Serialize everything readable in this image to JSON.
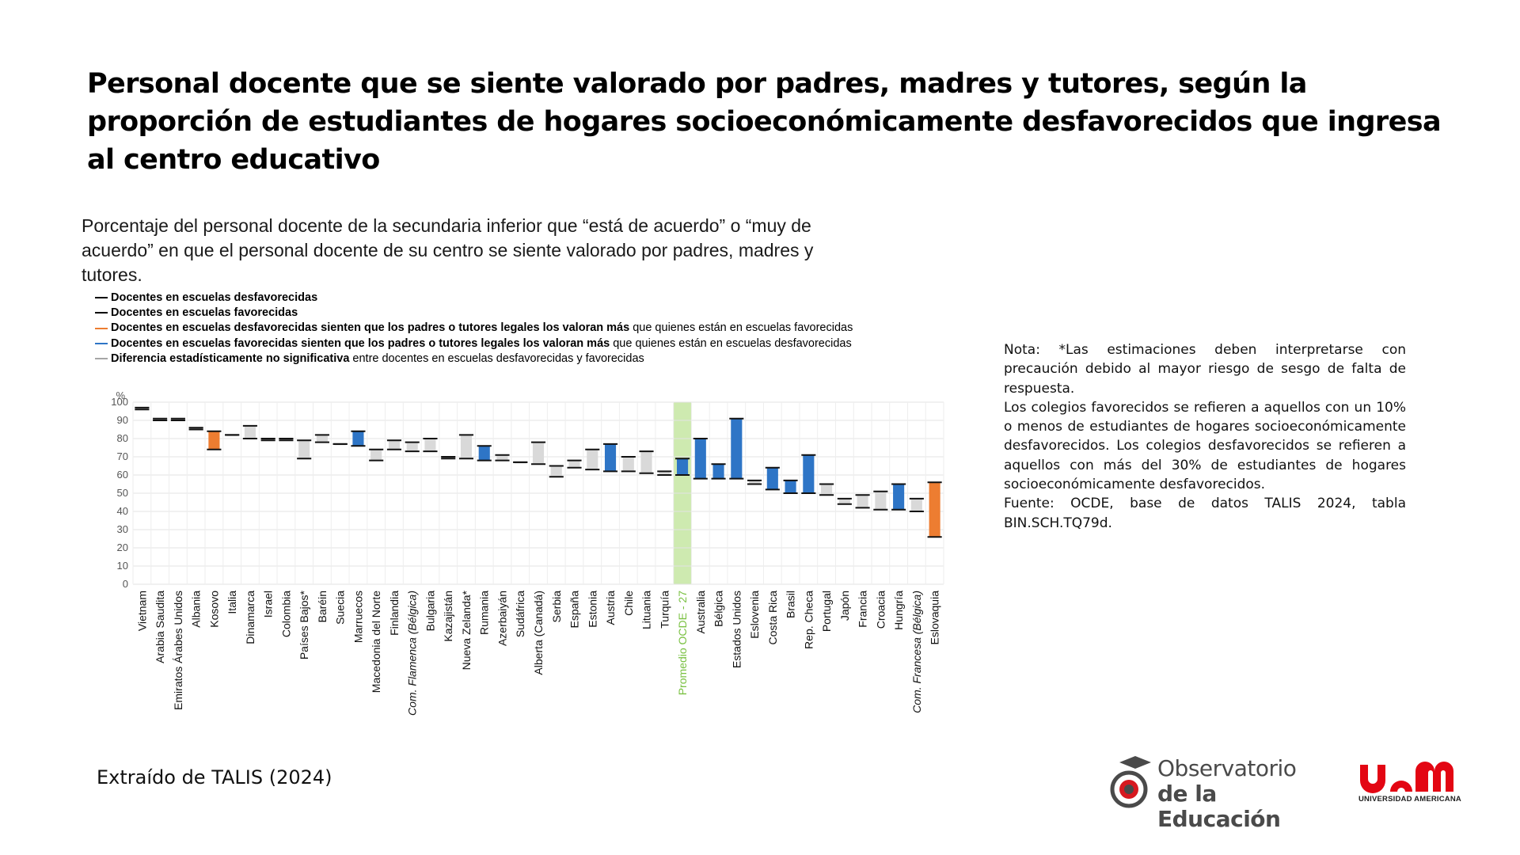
{
  "title": "Personal docente que se siente valorado por padres, madres y tutores, según la proporción de estudiantes de hogares socioeconómicamente desfavorecidos que ingresa al centro educativo",
  "subtitle": "Porcentaje del personal docente de la secundaria inferior que “está de acuerdo” o “muy de acuerdo” en que el personal docente de su centro se siente valorado por padres, madres y tutores.",
  "legend": [
    {
      "bold": "Docentes en escuelas desfavorecidas",
      "rest": "",
      "color": "#000000"
    },
    {
      "bold": "Docentes en escuelas favorecidas",
      "rest": "",
      "color": "#000000"
    },
    {
      "bold": "Docentes en escuelas desfavorecidas sienten que los padres o tutores legales los valoran más",
      "rest": " que quienes están en escuelas favorecidas",
      "color": "#ed7d31"
    },
    {
      "bold": "Docentes en escuelas favorecidas sienten que los padres o tutores legales los valoran más",
      "rest": " que quienes están en escuelas desfavorecidas",
      "color": "#2e75c6"
    },
    {
      "bold": "Diferencia estadísticamente no significativa",
      "rest": " entre docentes en escuelas desfavorecidas y favorecidas",
      "color": "#a6a6a6"
    }
  ],
  "colors": {
    "orange": "#ed7d31",
    "blue": "#2e75c6",
    "gray": "#d9d9d9",
    "highlight": "#92d050"
  },
  "chart_data": {
    "type": "bar",
    "subtype": "floating-difference",
    "yunit": "%",
    "ylim": [
      0,
      100
    ],
    "yticks": [
      0,
      10,
      20,
      30,
      40,
      50,
      60,
      70,
      80,
      90,
      100
    ],
    "grid": true,
    "highlight_category": "Promedio OCDE - 27",
    "categories": [
      "Vietnam",
      "Arabia Saudita",
      "Emiratos Árabes Unidos",
      "Albania",
      "Kosovo",
      "Italia",
      "Dinamarca",
      "Israel",
      "Colombia",
      "Países Bajos*",
      "Baréin",
      "Suecia",
      "Marruecos",
      "Macedonia del Norte",
      "Finlandia",
      "Com. Flamenca (Bélgica)",
      "Bulgaria",
      "Kazajistán",
      "Nueva Zelanda*",
      "Rumania",
      "Azerbaiyán",
      "Sudáfrica",
      "Alberta (Canadá)",
      "Serbia",
      "España",
      "Estonia",
      "Austria",
      "Chile",
      "Lituania",
      "Turquía",
      "Promedio OCDE - 27",
      "Australia",
      "Bélgica",
      "Estados Unidos",
      "Eslovenia",
      "Costa Rica",
      "Brasil",
      "Rep. Checa",
      "Portugal",
      "Japón",
      "Francia",
      "Croacia",
      "Hungría",
      "Com. Francesa (Bélgica)",
      "Eslovaquia"
    ],
    "series": [
      {
        "name": "Docentes en escuelas desfavorecidas",
        "values": [
          97,
          91,
          91,
          86,
          74,
          82,
          87,
          80,
          80,
          69,
          82,
          77,
          84,
          68,
          79,
          78,
          80,
          69,
          82,
          76,
          71,
          67,
          78,
          59,
          68,
          74,
          77,
          70,
          73,
          62,
          69,
          80,
          66,
          91,
          55,
          64,
          57,
          71,
          55,
          47,
          49,
          51,
          55,
          47,
          26
        ]
      },
      {
        "name": "Docentes en escuelas favorecidas",
        "values": [
          96,
          90,
          90,
          85,
          84,
          82,
          80,
          79,
          79,
          79,
          78,
          77,
          76,
          74,
          74,
          73,
          73,
          70,
          69,
          68,
          68,
          67,
          66,
          65,
          64,
          63,
          62,
          62,
          61,
          60,
          60,
          58,
          58,
          58,
          57,
          52,
          50,
          50,
          49,
          44,
          42,
          41,
          41,
          40,
          56
        ]
      }
    ],
    "significance": [
      "ns",
      "ns",
      "ns",
      "ns",
      "orange",
      "ns",
      "ns",
      "ns",
      "ns",
      "ns",
      "ns",
      "ns",
      "blue",
      "ns",
      "ns",
      "ns",
      "ns",
      "ns",
      "ns",
      "blue",
      "ns",
      "ns",
      "ns",
      "ns",
      "ns",
      "ns",
      "blue",
      "ns",
      "ns",
      "ns",
      "blue",
      "blue",
      "blue",
      "blue",
      "ns",
      "blue",
      "blue",
      "blue",
      "ns",
      "ns",
      "ns",
      "ns",
      "blue",
      "ns",
      "orange"
    ]
  },
  "note": [
    "Nota: *Las estimaciones deben interpretarse con precaución debido al mayor riesgo de sesgo de falta de respuesta.",
    "Los colegios favorecidos se refieren a aquellos con un 10% o menos de estudiantes de hogares socioeconómicamente desfavorecidos. Los colegios desfavorecidos se refieren a aquellos con más del 30% de estudiantes de hogares socioeconómicamente desfavorecidos.",
    "Fuente: OCDE, base de datos TALIS 2024, tabla BIN.SCH.TQ79d."
  ],
  "source_caption": "Extraído de TALIS (2024)",
  "logo_observatorio": {
    "line1": "Observatorio",
    "line2": "de la Educación",
    "icon": "graduation-cap-eye-icon"
  },
  "logo_uam": {
    "mark": "uam",
    "tagline": "UNIVERSIDAD AMERICANA",
    "color": "#e30613"
  }
}
